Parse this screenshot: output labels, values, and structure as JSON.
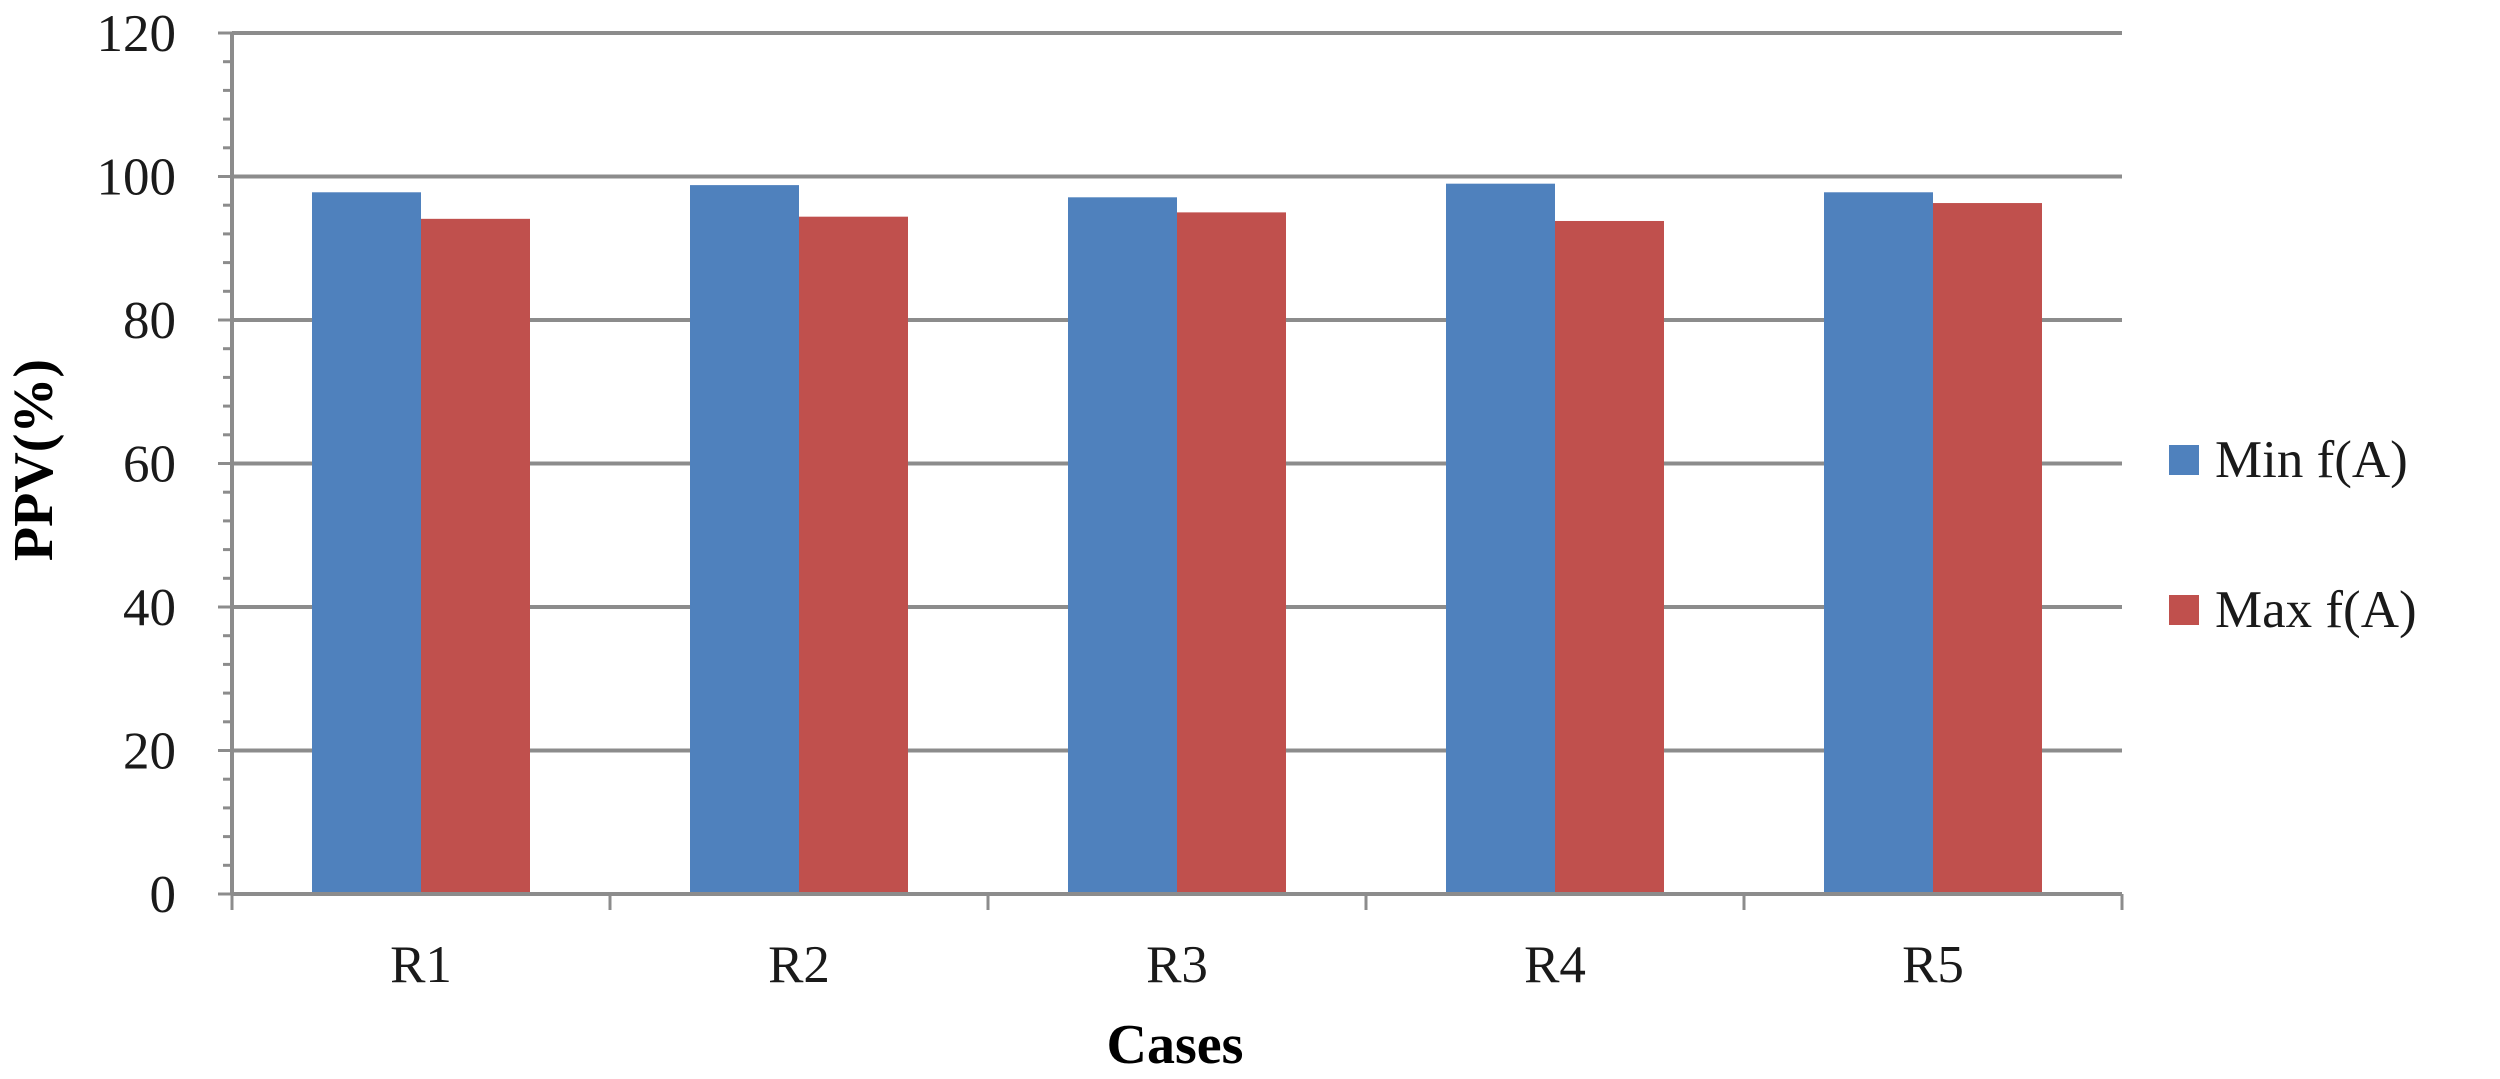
{
  "chart_data": {
    "type": "bar",
    "title": "",
    "xlabel": "Cases",
    "ylabel": "PPV(%)",
    "categories": [
      "R1",
      "R2",
      "R3",
      "R4",
      "R5"
    ],
    "series": [
      {
        "name": "Min f(A)",
        "color": "#4f81bd",
        "values": [
          97.8,
          98.8,
          97.1,
          99.0,
          97.8
        ]
      },
      {
        "name": "Max f(A)",
        "color": "#c0504d",
        "values": [
          94.1,
          94.4,
          95.0,
          93.8,
          96.3
        ]
      }
    ],
    "ylim": [
      0,
      120
    ],
    "yticks": [
      "0",
      "20",
      "40",
      "60",
      "80",
      "100",
      "120"
    ],
    "grid": true,
    "legend_position": "right"
  }
}
